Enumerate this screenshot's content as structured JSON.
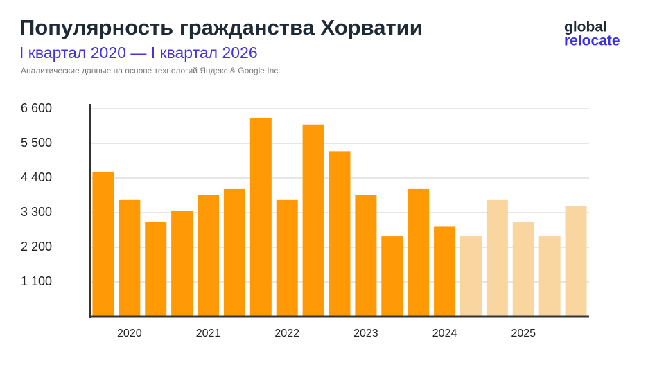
{
  "chart_data": {
    "type": "bar",
    "title": "Популярность гражданства Хорватии",
    "subtitle": "I квартал 2020 — I квартал 2026",
    "source": "Аналитические данные на основе технологий Яндекс & Google Inc.",
    "logo": [
      "global",
      "relocate"
    ],
    "categories": [
      null,
      "2020",
      null,
      null,
      "2021",
      null,
      null,
      "2022",
      null,
      null,
      "2023",
      null,
      null,
      "2024",
      null,
      null,
      "2025",
      null,
      null
    ],
    "values": [
      4600,
      3700,
      3000,
      3350,
      3850,
      4050,
      6300,
      3700,
      6100,
      5250,
      3850,
      2550,
      4050,
      2850,
      2550,
      3700,
      3000,
      2550,
      3500
    ],
    "colors": [
      "#ff9905",
      "#ff9905",
      "#ff9905",
      "#ff9905",
      "#ff9905",
      "#ff9905",
      "#ff9905",
      "#ff9905",
      "#ff9905",
      "#ff9905",
      "#ff9905",
      "#ff9905",
      "#ff9905",
      "#ff9905",
      "#f9d59f",
      "#f9d59f",
      "#f9d59f",
      "#f9d59f",
      "#f9d59f"
    ],
    "ylim": [
      0,
      6600
    ],
    "yticks": [
      {
        "value": 1100,
        "label": "1 100"
      },
      {
        "value": 2200,
        "label": "2 200"
      },
      {
        "value": 3300,
        "label": "3 300"
      },
      {
        "value": 4400,
        "label": "4 400"
      },
      {
        "value": 5500,
        "label": "5 500"
      },
      {
        "value": 6600,
        "label": "6 600"
      }
    ],
    "grid": true
  }
}
